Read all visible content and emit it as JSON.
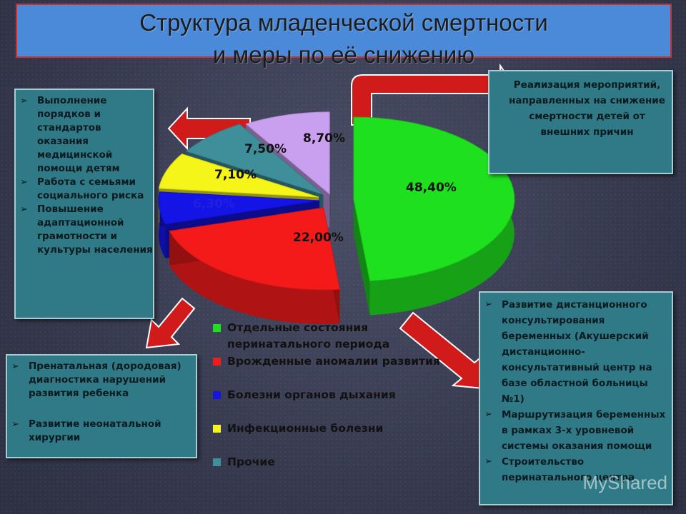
{
  "title": {
    "line1": "Структура младенческой смертности",
    "line2": "и  меры по её снижению"
  },
  "left_box": {
    "items": [
      "Выполнение порядков и стандартов оказания медицинской помощи детям",
      "Работа с семьями социального риска",
      "Повышение адаптационной грамотности и культуры населения"
    ]
  },
  "right_top_box": {
    "items": [
      "Реализация мероприятий, направленных на снижение смертности детей от внешних причин"
    ]
  },
  "left_bottom_box": {
    "items": [
      "Пренатальная  (дородовая) диагностика нарушений развития ребенка",
      "Развитие неонатальной хирургии"
    ]
  },
  "right_bottom_box": {
    "items": [
      "Развитие дистанционного консультирования беременных (Акушерский дистанционно-консультативный центр на базе областной больницы №1)",
      "Маршрутизация беременных в рамках 3-х уровневой системы оказания помощи",
      "Строительство перинатального центра"
    ]
  },
  "bullet_icon": "checkmark-arrow-icon",
  "watermark": "MyShared",
  "chart_data": {
    "type": "pie",
    "style": "3d-exploded",
    "series": [
      {
        "name": "Отдельные состояния перинатального периода",
        "value": 48.4,
        "label": "48,40%",
        "color": "#1ee01e"
      },
      {
        "name": "Врожденные аномалии развития",
        "value": 22.0,
        "label": "22,00%",
        "color": "#f51a1a"
      },
      {
        "name": "Болезни органов дыхания",
        "value": 6.3,
        "label": "6,30%",
        "color": "#1414e6"
      },
      {
        "name": "Инфекционные болезни",
        "value": 7.1,
        "label": "7,10%",
        "color": "#f5f51a"
      },
      {
        "name": "Прочие",
        "value": 7.5,
        "label": "7,50%",
        "color": "#3f8f9b"
      },
      {
        "name": "",
        "value": 8.7,
        "label": "8,70%",
        "color": "#c9a0f0"
      }
    ],
    "legend": {
      "placement": "bottom",
      "items": [
        {
          "label": "Отдельные состояния перинатального периода",
          "color": "#1ee01e"
        },
        {
          "label": "Врожденные аномалии развития",
          "color": "#f51a1a"
        },
        {
          "label": "Болезни органов дыхания",
          "color": "#1414e6"
        },
        {
          "label": "Инфекционные болезни",
          "color": "#f5f51a"
        },
        {
          "label": "Прочие",
          "color": "#3f8f9b"
        }
      ]
    }
  }
}
